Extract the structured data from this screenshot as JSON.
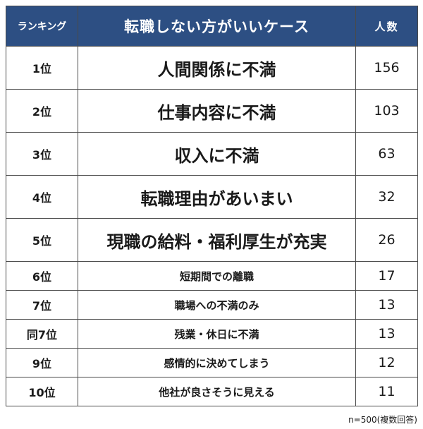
{
  "header": {
    "rank": "ランキング",
    "case": "転職しない方がいいケース",
    "count": "人数"
  },
  "rows": [
    {
      "rank": "1位",
      "label": "人間関係に不満",
      "count": "156"
    },
    {
      "rank": "2位",
      "label": "仕事内容に不満",
      "count": "103"
    },
    {
      "rank": "3位",
      "label": "収入に不満",
      "count": "63"
    },
    {
      "rank": "4位",
      "label": "転職理由があいまい",
      "count": "32"
    },
    {
      "rank": "5位",
      "label": "現職の給料・福利厚生が充実",
      "count": "26"
    },
    {
      "rank": "6位",
      "label": "短期間での離職",
      "count": "17"
    },
    {
      "rank": "7位",
      "label": "職場への不満のみ",
      "count": "13"
    },
    {
      "rank": "同7位",
      "label": "残業・休日に不満",
      "count": "13"
    },
    {
      "rank": "9位",
      "label": "感情的に決めてしまう",
      "count": "12"
    },
    {
      "rank": "10位",
      "label": "他社が良さそうに見える",
      "count": "11"
    }
  ],
  "footnote": "n=500(複数回答)",
  "colors": {
    "header_bg": "#2d4f83",
    "header_text": "#ffffff",
    "border": "#4a4a4a"
  },
  "chart_data": {
    "type": "table",
    "columns": [
      "ランキング",
      "転職しない方がいいケース",
      "人数"
    ],
    "categories": [
      "人間関係に不満",
      "仕事内容に不満",
      "収入に不満",
      "転職理由があいまい",
      "現職の給料・福利厚生が充実",
      "短期間での離職",
      "職場への不満のみ",
      "残業・休日に不満",
      "感情的に決めてしまう",
      "他社が良さそうに見える"
    ],
    "values": [
      156,
      103,
      63,
      32,
      26,
      17,
      13,
      13,
      12,
      11
    ]
  }
}
